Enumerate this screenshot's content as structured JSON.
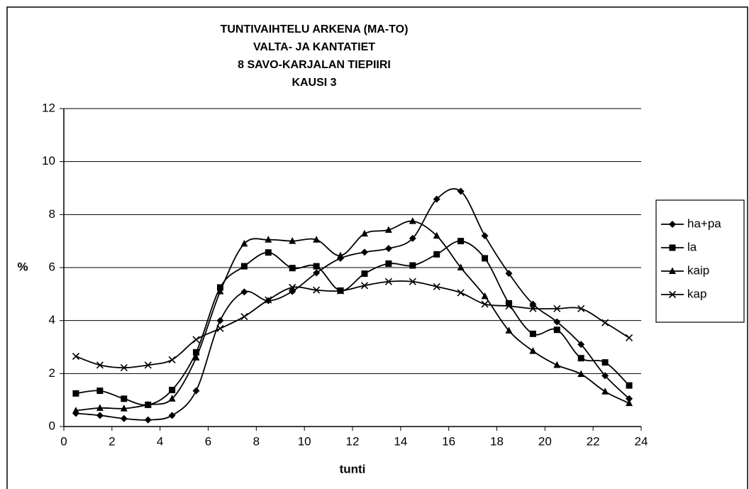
{
  "chart_data": {
    "type": "line",
    "title": [
      "TUNTIVAIHTELU ARKENA (MA-TO)",
      "VALTA- JA KANTATIET",
      "8 SAVO-KARJALAN TIEPIIRI",
      "KAUSI 3"
    ],
    "x_label": "tunti",
    "y_label": "%",
    "x": [
      0.5,
      1.5,
      2.5,
      3.5,
      4.5,
      5.5,
      6.5,
      7.5,
      8.5,
      9.5,
      10.5,
      11.5,
      12.5,
      13.5,
      14.5,
      15.5,
      16.5,
      17.5,
      18.5,
      19.5,
      20.5,
      21.5,
      22.5,
      23.5
    ],
    "series": [
      {
        "name": "ha+pa",
        "color": "#000000",
        "marker": "diamond",
        "values": [
          0.5,
          0.42,
          0.3,
          0.25,
          0.42,
          1.35,
          4.0,
          5.08,
          4.75,
          5.1,
          5.8,
          6.35,
          6.58,
          6.72,
          7.1,
          8.58,
          8.88,
          7.2,
          5.78,
          4.62,
          3.95,
          3.1,
          1.92,
          1.05
        ]
      },
      {
        "name": "la",
        "color": "#000000",
        "marker": "square",
        "values": [
          1.25,
          1.35,
          1.05,
          0.82,
          1.38,
          2.8,
          5.25,
          6.05,
          6.57,
          5.98,
          6.05,
          5.13,
          5.77,
          6.15,
          6.08,
          6.5,
          7.0,
          6.35,
          4.65,
          3.5,
          3.65,
          2.58,
          2.42,
          1.55
        ]
      },
      {
        "name": "kaip",
        "color": "#000000",
        "marker": "triangle",
        "values": [
          0.6,
          0.7,
          0.68,
          0.82,
          1.05,
          2.6,
          5.1,
          6.9,
          7.05,
          7.0,
          7.05,
          6.45,
          7.28,
          7.42,
          7.75,
          7.2,
          6.0,
          4.92,
          3.62,
          2.85,
          2.32,
          1.98,
          1.32,
          0.88
        ]
      },
      {
        "name": "kap",
        "color": "#000000",
        "marker": "x",
        "values": [
          2.65,
          2.32,
          2.22,
          2.32,
          2.52,
          3.28,
          3.7,
          4.15,
          4.78,
          5.25,
          5.15,
          5.12,
          5.32,
          5.47,
          5.47,
          5.28,
          5.05,
          4.62,
          4.55,
          4.45,
          4.45,
          4.45,
          3.92,
          3.35
        ]
      }
    ],
    "xlim": [
      0,
      24
    ],
    "xticks": [
      0,
      2,
      4,
      6,
      8,
      10,
      12,
      14,
      16,
      18,
      20,
      22,
      24
    ],
    "ylim": [
      0,
      12
    ],
    "yticks": [
      0,
      2,
      4,
      6,
      8,
      10,
      12
    ],
    "grid": true,
    "legend": "right",
    "smooth": true
  }
}
